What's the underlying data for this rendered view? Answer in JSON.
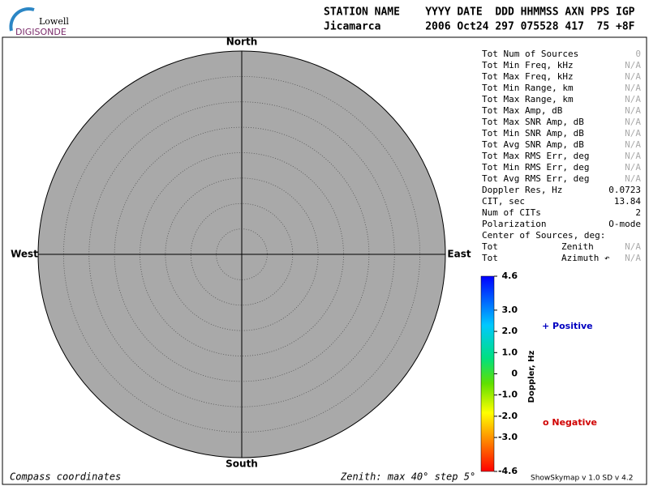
{
  "header": {
    "logo_top": "Lowell",
    "logo_bottom": "DIGISONDE",
    "line1": "STATION NAME    YYYY DATE  DDD HHMMSS AXN PPS IGP",
    "line2": "Jicamarca       2006 Oct24 297 075528 417  75 +8F"
  },
  "skymap": {
    "north": "North",
    "south": "South",
    "west": "West",
    "east": "East"
  },
  "stats": [
    {
      "label": "Tot Num of Sources",
      "value": "0",
      "color": "#aaaaaa"
    },
    {
      "label": "Tot Min Freq, kHz",
      "value": "N/A",
      "color": "#aaaaaa"
    },
    {
      "label": "Tot Max Freq, kHz",
      "value": "N/A",
      "color": "#aaaaaa"
    },
    {
      "label": "Tot Min Range, km",
      "value": "N/A",
      "color": "#aaaaaa"
    },
    {
      "label": "Tot Max Range, km",
      "value": "N/A",
      "color": "#aaaaaa"
    },
    {
      "label": "Tot Max Amp, dB",
      "value": "N/A",
      "color": "#aaaaaa"
    },
    {
      "label": "Tot Max SNR Amp, dB",
      "value": "N/A",
      "color": "#aaaaaa"
    },
    {
      "label": "Tot Min SNR Amp, dB",
      "value": "N/A",
      "color": "#aaaaaa"
    },
    {
      "label": "Tot Avg SNR Amp, dB",
      "value": "N/A",
      "color": "#aaaaaa"
    },
    {
      "label": "Tot Max RMS Err, deg",
      "value": "N/A",
      "color": "#aaaaaa"
    },
    {
      "label": "Tot Min RMS Err, deg",
      "value": "N/A",
      "color": "#aaaaaa"
    },
    {
      "label": "Tot Avg RMS Err, deg",
      "value": "N/A",
      "color": "#aaaaaa"
    },
    {
      "label": "Doppler Res, Hz",
      "value": "0.0723",
      "color": "#000000"
    },
    {
      "label": "CIT, sec",
      "value": "13.84",
      "color": "#000000"
    },
    {
      "label": "Num of CITs",
      "value": "2",
      "color": "#000000"
    },
    {
      "label": "Polarization",
      "value": "O-mode",
      "color": "#000000"
    },
    {
      "label": "Center of Sources, deg:"
    },
    {
      "label": "Tot",
      "mid": "Zenith",
      "value": "N/A",
      "color": "#aaaaaa"
    },
    {
      "label": "Tot",
      "mid": "Azimuth ↶",
      "value": "N/A",
      "color": "#aaaaaa"
    }
  ],
  "colorbar": {
    "axis_label": "Doppler, Hz",
    "ylim": [
      -4.6,
      4.6
    ],
    "ticks": [
      {
        "value": 4.6,
        "label": "4.6"
      },
      {
        "value": 3,
        "label": "3.0"
      },
      {
        "value": 2,
        "label": "2.0"
      },
      {
        "value": 1,
        "label": "1.0"
      },
      0,
      {
        "value": -1,
        "label": "-1.0"
      },
      {
        "value": -2,
        "label": "-2.0"
      },
      {
        "value": -3,
        "label": "-3.0"
      },
      {
        "value": -4.6,
        "label": "-4.6"
      }
    ],
    "positive": "+ Positive",
    "negative": "o Negative"
  },
  "footer": {
    "left": "Compass coordinates",
    "middle": "Zenith: max 40°  step 5°",
    "right": "ShowSkymap v 1.0  SD v 4.2"
  }
}
